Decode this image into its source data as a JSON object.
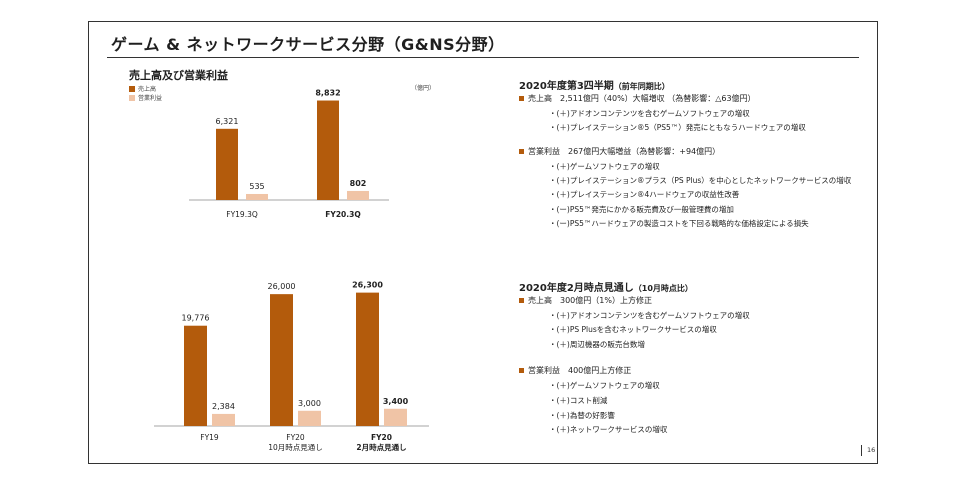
{
  "title": "ゲーム & ネットワークサービス分野（G&NS分野）",
  "top_chart_section": {
    "title": "売上高及び営業利益",
    "unit": "（億円）",
    "legend": [
      {
        "label": "売上高",
        "color": "#b35b0c"
      },
      {
        "label": "営業利益",
        "color": "#f0c4a6"
      }
    ]
  },
  "chart_data": [
    {
      "type": "bar",
      "title": "売上高及び営業利益",
      "categories": [
        "FY19.3Q",
        "FY20.3Q"
      ],
      "category_bold": [
        false,
        true
      ],
      "series": [
        {
          "name": "売上高",
          "values": [
            6321,
            8832
          ],
          "labels": [
            "6,321",
            "8,832"
          ],
          "label_bold": [
            false,
            true
          ],
          "color": "#b35b0c"
        },
        {
          "name": "営業利益",
          "values": [
            535,
            802
          ],
          "labels": [
            "535",
            "802"
          ],
          "label_bold": [
            false,
            true
          ],
          "color": "#f0c4a6"
        }
      ],
      "ylim": [
        0,
        9500
      ]
    },
    {
      "type": "bar",
      "categories": [
        [
          "FY19"
        ],
        [
          "FY20",
          "10月時点見通し"
        ],
        [
          "FY20",
          "2月時点見通し"
        ]
      ],
      "category_bold": [
        false,
        false,
        true
      ],
      "series": [
        {
          "name": "売上高",
          "values": [
            19776,
            26000,
            26300
          ],
          "labels": [
            "19,776",
            "26,000",
            "26,300"
          ],
          "label_bold": [
            false,
            false,
            true
          ],
          "color": "#b35b0c"
        },
        {
          "name": "営業利益",
          "values": [
            2384,
            3000,
            3400
          ],
          "labels": [
            "2,384",
            "3,000",
            "3,400"
          ],
          "label_bold": [
            false,
            false,
            true
          ],
          "color": "#f0c4a6"
        }
      ],
      "ylim": [
        0,
        28000
      ]
    }
  ],
  "q3": {
    "heading": "2020年度第3四半期",
    "heading_sub": "（前年同期比）",
    "sales": {
      "text": "売上高　2,511億円（40%）大幅増収 （為替影響：△63億円）",
      "items": [
        "・(＋)アドオンコンテンツを含むゲームソフトウェアの増収",
        "・(＋)プレイステーション®5（PS5™）発売にともなうハードウェアの増収"
      ]
    },
    "profit": {
      "text": "営業利益　267億円大幅増益（為替影響：+94億円）",
      "items": [
        "・(＋)ゲームソフトウェアの増収",
        "・(＋)プレイステーション®プラス（PS Plus）を中心としたネットワークサービスの増収",
        "・(＋)プレイステーション®4ハードウェアの収益性改善",
        "・(ー)PS5™発売にかかる販売費及び一般管理費の増加",
        "・(ー)PS5™ハードウェアの製造コストを下回る戦略的な価格設定による損失"
      ]
    }
  },
  "fy": {
    "heading": "2020年度2月時点見通し",
    "heading_sub": "（10月時点比）",
    "sales": {
      "text": "売上高　300億円（1%）上方修正",
      "items": [
        "・(＋)アドオンコンテンツを含むゲームソフトウェアの増収",
        "・(＋)PS Plusを含むネットワークサービスの増収",
        "・(＋)周辺機器の販売台数増"
      ]
    },
    "profit": {
      "text": "営業利益　400億円上方修正",
      "items": [
        "・(＋)ゲームソフトウェアの増収",
        "・(＋)コスト削減",
        "・(＋)為替の好影響",
        "・(＋)ネットワークサービスの増収"
      ]
    }
  },
  "page_number": "16"
}
